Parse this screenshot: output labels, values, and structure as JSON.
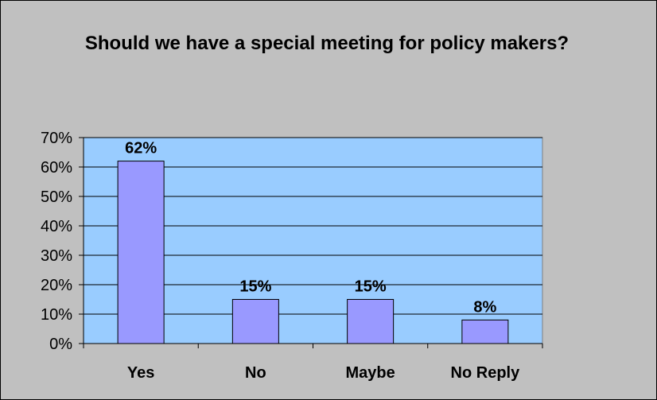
{
  "chart_data": {
    "type": "bar",
    "title": "Should we have a special meeting for policy makers?",
    "categories": [
      "Yes",
      "No",
      "Maybe",
      "No Reply"
    ],
    "values": [
      62,
      15,
      15,
      8
    ],
    "data_labels": [
      "62%",
      "15%",
      "15%",
      "8%"
    ],
    "ylim": [
      0,
      70
    ],
    "yticks": [
      0,
      10,
      20,
      30,
      40,
      50,
      60,
      70
    ],
    "ytick_labels": [
      "0%",
      "10%",
      "20%",
      "30%",
      "40%",
      "50%",
      "60%",
      "70%"
    ],
    "grid": true,
    "legend": "none",
    "colors": {
      "outer_background": "#c0c0c0",
      "plot_background": "#99ccff",
      "bar_fill": "#9999ff",
      "bar_stroke": "#000000",
      "gridline": "#000000"
    }
  }
}
